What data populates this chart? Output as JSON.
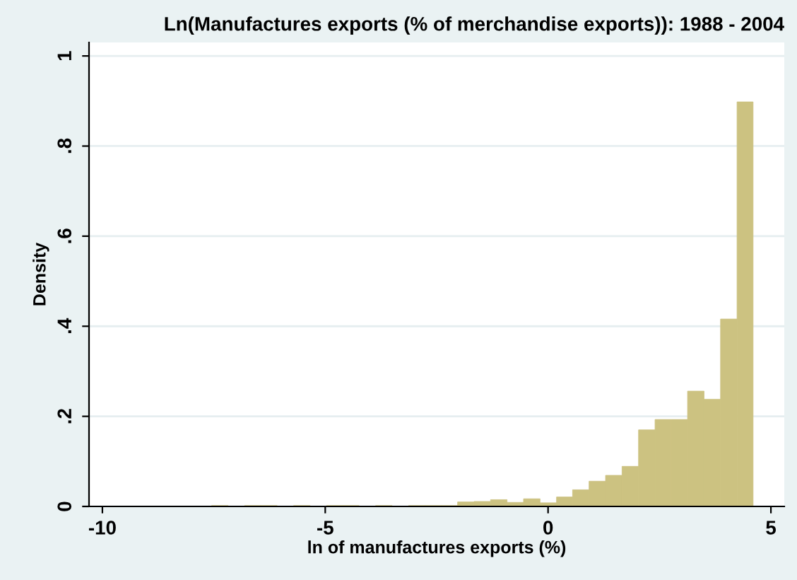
{
  "chart_data": {
    "type": "histogram",
    "title": "Ln(Manufactures exports (% of merchandise exports)): 1988 - 2004",
    "xlabel": "ln of manufactures exports (%)",
    "ylabel": "Density",
    "color": "#ccc281",
    "bins": [
      -7.55,
      -7.18,
      -6.81,
      -6.45,
      -6.08,
      -5.71,
      -5.34,
      -4.97,
      -4.6,
      -4.24,
      -3.87,
      -3.5,
      -3.13,
      -2.76,
      -2.39,
      -2.03,
      -1.66,
      -1.29,
      -0.92,
      -0.55,
      -0.18,
      0.19,
      0.55,
      0.92,
      1.29,
      1.66,
      2.03,
      2.4,
      2.76,
      3.13,
      3.5,
      3.87,
      4.24,
      4.6
    ],
    "values": [
      0.002,
      0,
      0.002,
      0.002,
      0,
      0.002,
      0,
      0.002,
      0.002,
      0,
      0.002,
      0,
      0.002,
      0.002,
      0.002,
      0.01,
      0.011,
      0.015,
      0.009,
      0.017,
      0.008,
      0.021,
      0.037,
      0.056,
      0.069,
      0.089,
      0.17,
      0.193,
      0.193,
      0.256,
      0.238,
      0.416,
      0.898
    ],
    "xlim": [
      -10.3,
      5.3
    ],
    "ylim": [
      0,
      1.03
    ],
    "xticks": [
      -10,
      -5,
      0,
      5
    ],
    "yticks": [
      0,
      {
        "value": 0.2,
        "label": ".2"
      },
      {
        "value": 0.4,
        "label": ".4"
      },
      {
        "value": 0.6,
        "label": ".6"
      },
      {
        "value": 0.8,
        "label": ".8"
      },
      {
        "value": 1,
        "label": "1"
      }
    ],
    "grid": "y"
  }
}
